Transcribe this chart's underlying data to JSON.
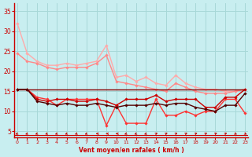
{
  "background_color": "#c8eef0",
  "grid_color": "#a8d8d8",
  "xlabel": "Vent moyen/en rafales ( km/h )",
  "xlabel_color": "#cc0000",
  "tick_color": "#cc0000",
  "x_ticks": [
    0,
    1,
    2,
    3,
    4,
    5,
    6,
    7,
    8,
    9,
    10,
    11,
    12,
    13,
    14,
    15,
    16,
    17,
    18,
    19,
    20,
    21,
    22,
    23
  ],
  "ylim": [
    3.5,
    37
  ],
  "xlim": [
    -0.3,
    23.3
  ],
  "yticks": [
    5,
    10,
    15,
    20,
    25,
    30,
    35
  ],
  "lines": [
    {
      "color": "#ffaaaa",
      "x": [
        0,
        1,
        2,
        3,
        4,
        5,
        6,
        7,
        8,
        9,
        10,
        11,
        12,
        13,
        14,
        15,
        16,
        17,
        18,
        19,
        20,
        21,
        22,
        23
      ],
      "y": [
        32,
        24.5,
        22.5,
        21.5,
        21.5,
        22,
        21.5,
        22,
        22.5,
        26.5,
        18.5,
        19,
        17.5,
        18.5,
        17,
        16.5,
        19,
        17,
        16,
        15.5,
        15.5,
        15,
        15,
        15.5
      ],
      "marker": "D",
      "markersize": 1.8,
      "linewidth": 1.0
    },
    {
      "color": "#ff8888",
      "x": [
        0,
        1,
        2,
        3,
        4,
        5,
        6,
        7,
        8,
        9,
        10,
        11,
        12,
        13,
        14,
        15,
        16,
        17,
        18,
        19,
        20,
        21,
        22,
        23
      ],
      "y": [
        24.5,
        22.5,
        22,
        21,
        20.5,
        21,
        21,
        21,
        22,
        24,
        17.5,
        17,
        16.5,
        16,
        15.5,
        15,
        17,
        16,
        15,
        14.5,
        14.5,
        14.5,
        15,
        15.5
      ],
      "marker": "D",
      "markersize": 1.8,
      "linewidth": 1.0
    },
    {
      "color": "#ff3333",
      "x": [
        0,
        1,
        2,
        3,
        4,
        5,
        6,
        7,
        8,
        9,
        10,
        11,
        12,
        13,
        14,
        15,
        16,
        17,
        18,
        19,
        20,
        21,
        22,
        23
      ],
      "y": [
        15.5,
        15.5,
        13.5,
        13,
        11.5,
        13,
        13,
        13,
        13,
        6.5,
        11.5,
        7,
        7,
        7,
        13,
        9,
        9,
        10,
        9,
        10,
        10,
        13,
        13,
        9.5
      ],
      "marker": "D",
      "markersize": 1.8,
      "linewidth": 1.0
    },
    {
      "color": "#cc0000",
      "x": [
        0,
        1,
        2,
        3,
        4,
        5,
        6,
        7,
        8,
        9,
        10,
        11,
        12,
        13,
        14,
        15,
        16,
        17,
        18,
        19,
        20,
        21,
        22,
        23
      ],
      "y": [
        15.5,
        15.5,
        13,
        12.5,
        13,
        13,
        12.5,
        12.5,
        13,
        12.5,
        11.5,
        13,
        13,
        13,
        14,
        12.5,
        13,
        13,
        13,
        11,
        11,
        13.5,
        13.5,
        15.5
      ],
      "marker": "D",
      "markersize": 1.8,
      "linewidth": 1.0
    },
    {
      "color": "#880000",
      "x": [
        0,
        1,
        2,
        3,
        4,
        5,
        6,
        7,
        8,
        9,
        10,
        11,
        12,
        13,
        14,
        15,
        16,
        17,
        18,
        19,
        20,
        21,
        22,
        23
      ],
      "y": [
        15.5,
        15.5,
        15.5,
        15.5,
        15.5,
        15.5,
        15.5,
        15.5,
        15.5,
        15.5,
        15.5,
        15.5,
        15.5,
        15.5,
        15.5,
        15.5,
        15.5,
        15.5,
        15.5,
        15.5,
        15.5,
        15.5,
        15.5,
        15.5
      ],
      "marker": null,
      "markersize": 0,
      "linewidth": 1.0
    },
    {
      "color": "#550000",
      "x": [
        0,
        1,
        2,
        3,
        4,
        5,
        6,
        7,
        8,
        9,
        10,
        11,
        12,
        13,
        14,
        15,
        16,
        17,
        18,
        19,
        20,
        21,
        22,
        23
      ],
      "y": [
        15.5,
        15.5,
        12.5,
        12,
        11.5,
        12,
        11.5,
        11.5,
        12,
        11.5,
        11,
        11.5,
        11.5,
        11.5,
        12,
        11.5,
        12,
        12,
        11,
        10.5,
        10,
        11.5,
        11.5,
        14.5
      ],
      "marker": "D",
      "markersize": 1.8,
      "linewidth": 1.0
    }
  ],
  "wind_arrows": {
    "x": [
      0,
      1,
      2,
      3,
      4,
      5,
      6,
      7,
      8,
      9,
      10,
      11,
      12,
      13,
      14,
      15,
      16,
      17,
      18,
      19,
      20,
      21,
      22,
      23
    ],
    "angles_deg": [
      225,
      225,
      225,
      225,
      225,
      225,
      225,
      225,
      270,
      270,
      270,
      225,
      225,
      225,
      45,
      45,
      45,
      45,
      45,
      45,
      45,
      45,
      135,
      135
    ]
  }
}
